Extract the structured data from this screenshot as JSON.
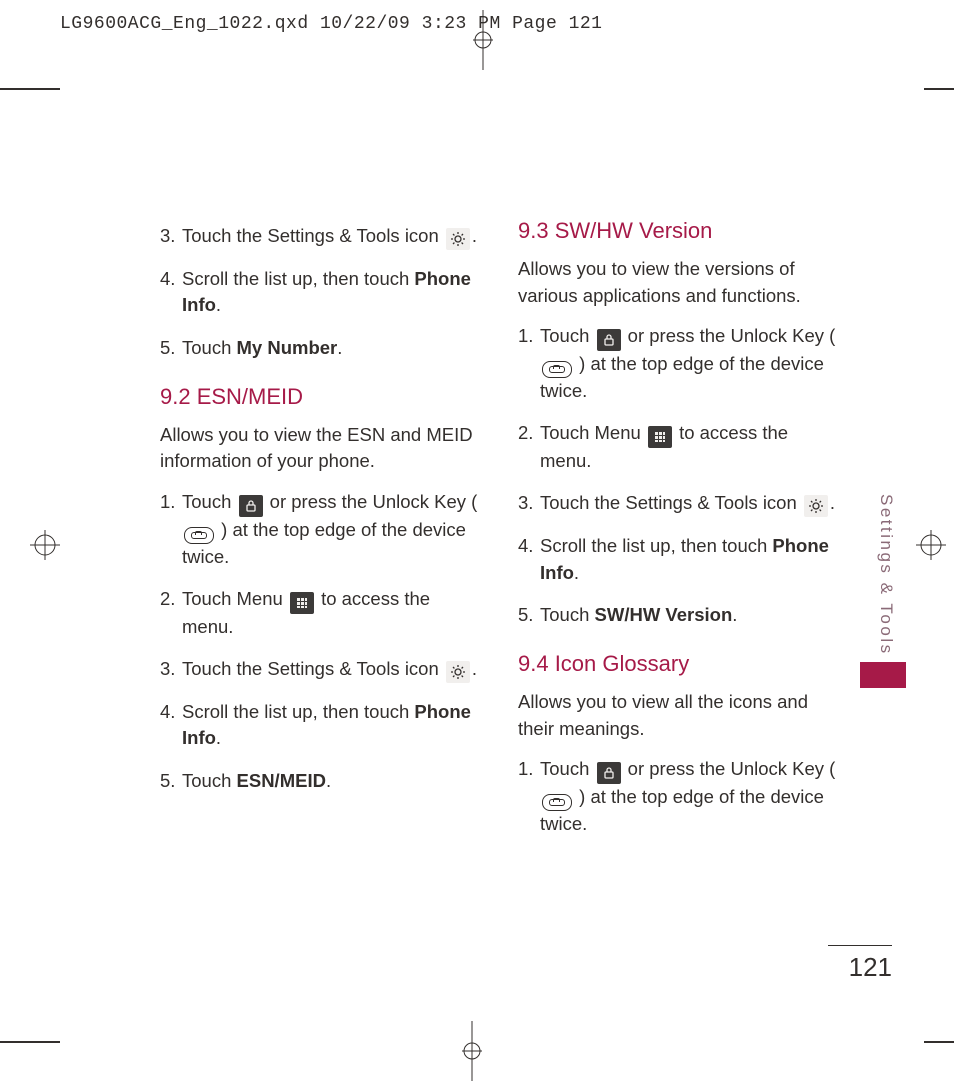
{
  "slug": "LG9600ACG_Eng_1022.qxd  10/22/09  3:23 PM  Page 121",
  "side_tab": "Settings & Tools",
  "page_number": "121",
  "colors": {
    "heading": "#a61a48",
    "text": "#332f2d",
    "side_label": "#8a6a77",
    "icon_dark_bg": "#3c3a39",
    "icon_light_bg": "#f1efed"
  },
  "left_column": {
    "list_a": [
      {
        "n": "3.",
        "pre": "Touch the Settings & Tools icon ",
        "icon": "gear-icon",
        "post": "."
      },
      {
        "n": "4.",
        "pre": "Scroll the list up, then touch ",
        "bold": "Phone Info",
        "post": "."
      },
      {
        "n": "5.",
        "pre": "Touch ",
        "bold": "My Number",
        "post": "."
      }
    ],
    "heading_b": "9.2 ESN/MEID",
    "para_b": "Allows you to view the ESN and MEID information of your phone.",
    "list_b": [
      {
        "n": "1.",
        "pre": "Touch ",
        "icon": "lock-icon",
        "mid": " or press the Unlock Key ( ",
        "icon2": "unlock-key-icon",
        "post": " ) at the top edge of the device twice."
      },
      {
        "n": "2.",
        "pre": "Touch Menu ",
        "icon": "menu-grid-icon",
        "post": " to access the menu."
      },
      {
        "n": "3.",
        "pre": "Touch the Settings & Tools icon ",
        "icon": "gear-icon",
        "post": "."
      },
      {
        "n": "4.",
        "pre": "Scroll the list up, then touch ",
        "bold": "Phone Info",
        "post": "."
      },
      {
        "n": "5.",
        "pre": "Touch ",
        "bold": "ESN/MEID",
        "post": "."
      }
    ]
  },
  "right_column": {
    "heading_a": "9.3 SW/HW Version",
    "para_a": "Allows you to view the versions of various applications and functions.",
    "list_a": [
      {
        "n": "1.",
        "pre": "Touch ",
        "icon": "lock-icon",
        "mid": " or press the Unlock Key ( ",
        "icon2": "unlock-key-icon",
        "post": " ) at the top edge of the device twice."
      },
      {
        "n": "2.",
        "pre": "Touch Menu ",
        "icon": "menu-grid-icon",
        "post": " to access the menu."
      },
      {
        "n": "3.",
        "pre": "Touch the Settings & Tools icon ",
        "icon": "gear-icon",
        "post": "."
      },
      {
        "n": "4.",
        "pre": "Scroll the list up, then touch ",
        "bold": "Phone Info",
        "post": "."
      },
      {
        "n": "5.",
        "pre": "Touch ",
        "bold": "SW/HW Version",
        "post": "."
      }
    ],
    "heading_b": "9.4 Icon Glossary",
    "para_b": "Allows you to view all the icons and their meanings.",
    "list_b": [
      {
        "n": "1.",
        "pre": "Touch ",
        "icon": "lock-icon",
        "mid": " or press the Unlock Key ( ",
        "icon2": "unlock-key-icon",
        "post": " ) at the top edge of the device twice."
      }
    ]
  }
}
